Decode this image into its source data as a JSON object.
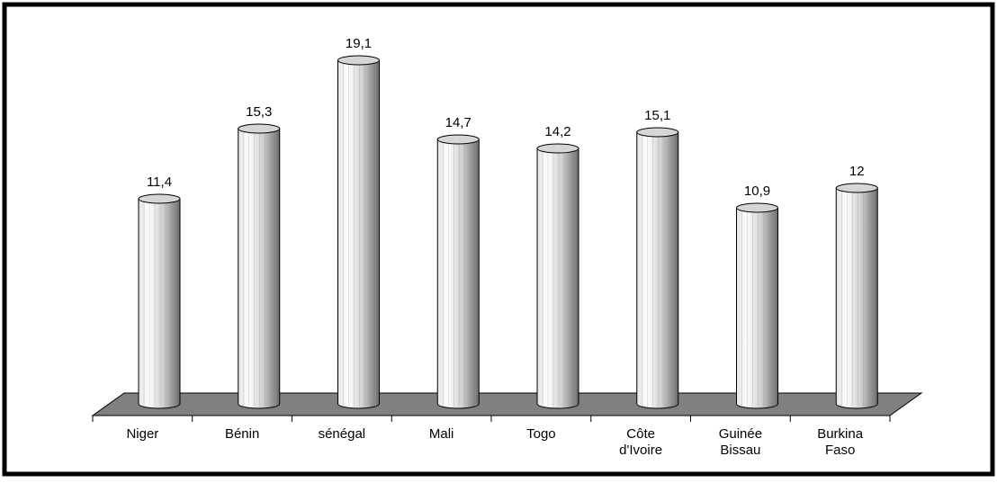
{
  "chart_data": {
    "type": "bar",
    "categories": [
      "Niger",
      "Bénin",
      "sénégal",
      "Mali",
      "Togo",
      "Côte d'Ivoire",
      "Guinée Bissau",
      "Burkina Faso"
    ],
    "category_lines": [
      [
        "Niger"
      ],
      [
        "Bénin"
      ],
      [
        "sénégal"
      ],
      [
        "Mali"
      ],
      [
        "Togo"
      ],
      [
        "Côte",
        "d'Ivoire"
      ],
      [
        "Guinée",
        "Bissau"
      ],
      [
        "Burkina",
        "Faso"
      ]
    ],
    "values": [
      11.4,
      15.3,
      19.1,
      14.7,
      14.2,
      15.1,
      10.9,
      12
    ],
    "value_labels": [
      "11,4",
      "15,3",
      "19,1",
      "14,7",
      "14,2",
      "15,1",
      "10,9",
      "12"
    ],
    "bar_style": "3d-cylinder",
    "ylim": [
      0,
      20
    ],
    "grid": false,
    "legend": "none",
    "colors": {
      "frame": "#000000",
      "floor": "#808080",
      "cylinder_light": "#ffffff",
      "cylinder_mid": "#c8c8c8",
      "cylinder_dark": "#6a6a6a",
      "text": "#000000"
    }
  }
}
